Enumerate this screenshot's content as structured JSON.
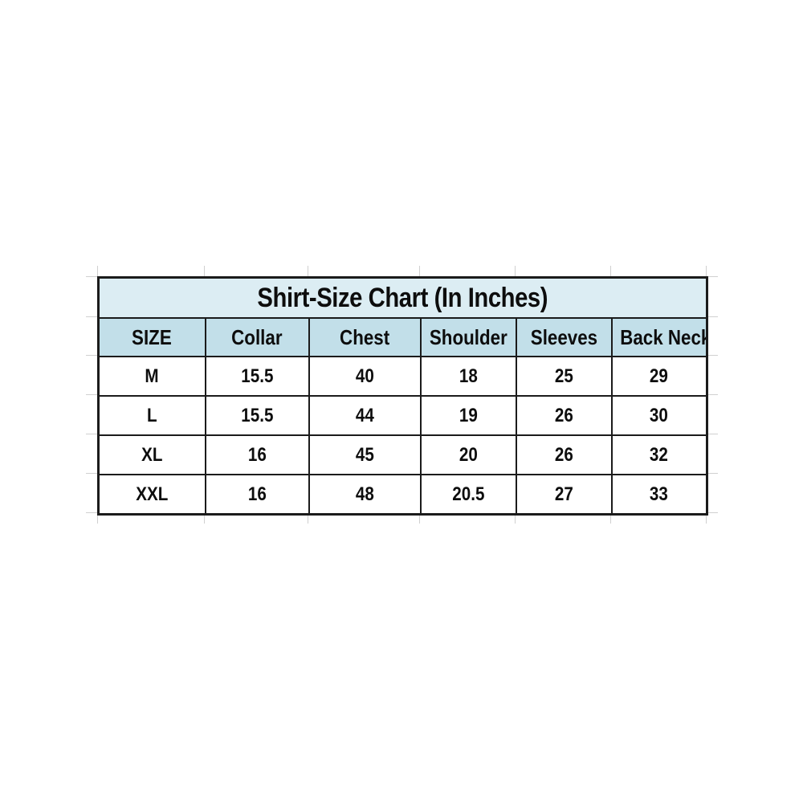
{
  "table": {
    "title": "Shirt-Size Chart (In Inches)",
    "columns": [
      "SIZE",
      "Collar",
      "Chest",
      "Shoulder",
      "Sleeves",
      "Back Neck"
    ],
    "rows": [
      {
        "size": "M",
        "collar": "15.5",
        "chest": "40",
        "shoulder": "18",
        "sleeves": "25",
        "back_neck": "29"
      },
      {
        "size": "L",
        "collar": "15.5",
        "chest": "44",
        "shoulder": "19",
        "sleeves": "26",
        "back_neck": "30"
      },
      {
        "size": "XL",
        "collar": "16",
        "chest": "45",
        "shoulder": "20",
        "sleeves": "26",
        "back_neck": "32"
      },
      {
        "size": "XXL",
        "collar": "16",
        "chest": "48",
        "shoulder": "20.5",
        "sleeves": "27",
        "back_neck": "33"
      }
    ]
  },
  "colors": {
    "page_bg": "#ffffff",
    "title_bg": "#dcedf3",
    "header_bg": "#c2dfe9",
    "cell_bg": "#ffffff",
    "border": "#1b1b1b",
    "gridline": "#c8c8c8",
    "text": "#0d0d0d"
  },
  "chart_data": {
    "type": "table",
    "title": "Shirt-Size Chart (In Inches)",
    "units": "inches",
    "columns": [
      "SIZE",
      "Collar",
      "Chest",
      "Shoulder",
      "Sleeves",
      "Back Neck"
    ],
    "rows": [
      [
        "M",
        15.5,
        40,
        18,
        25,
        29
      ],
      [
        "L",
        15.5,
        44,
        19,
        26,
        30
      ],
      [
        "XL",
        16,
        45,
        20,
        26,
        32
      ],
      [
        "XXL",
        16,
        48,
        20.5,
        27,
        33
      ]
    ]
  }
}
